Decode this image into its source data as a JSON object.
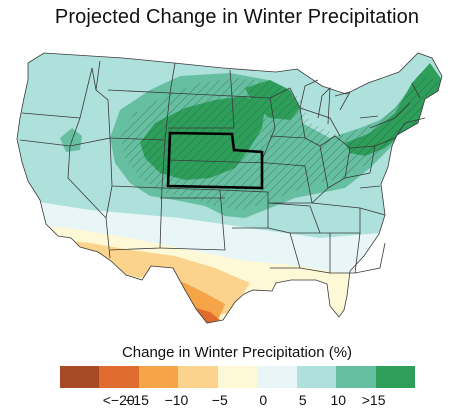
{
  "title": "Projected Change in Winter Precipitation",
  "legend": {
    "title": "Change in Winter Precipitation (%)",
    "colors": [
      "#a64b26",
      "#e06b2e",
      "#f5a547",
      "#fbd38d",
      "#fdf8d6",
      "#e8f6f7",
      "#aee0dc",
      "#66bfa0",
      "#2e9e5b"
    ],
    "labels": [
      "<−20",
      "−15",
      "−10",
      "−5",
      "0",
      "5",
      "10",
      ">15"
    ]
  },
  "map": {
    "highlighted_state": "Nebraska",
    "hatch_meaning_shown": false
  }
}
